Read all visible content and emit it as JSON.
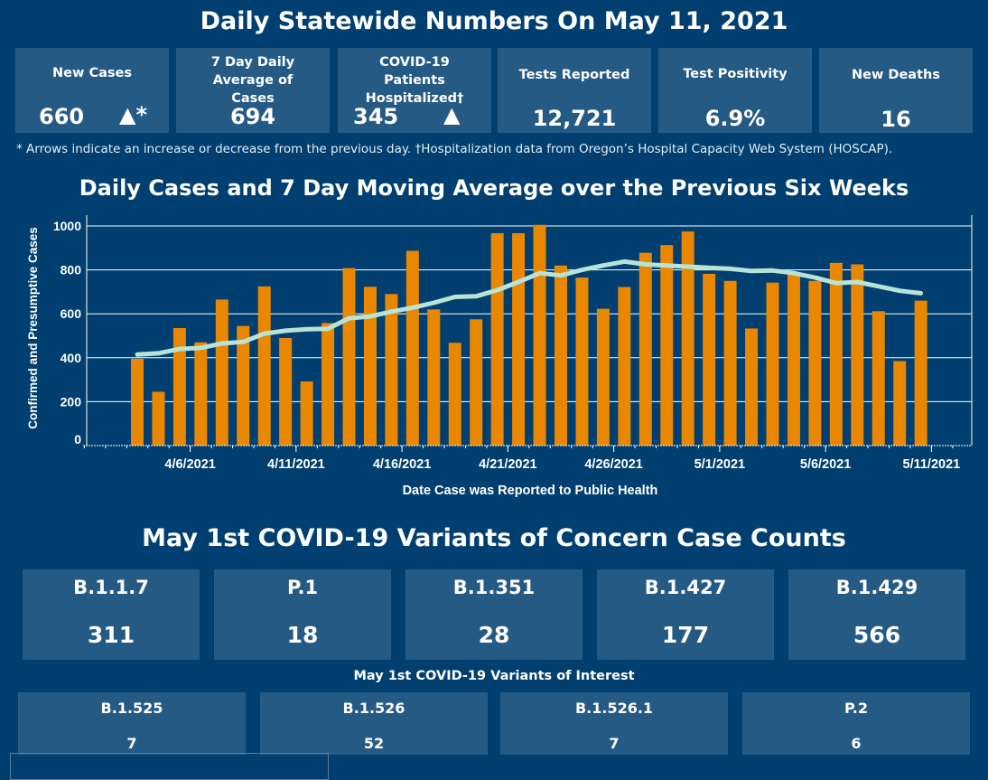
{
  "header": {
    "title": "Daily Statewide Numbers On May 11, 2021"
  },
  "stats": [
    {
      "label": "New Cases",
      "value": "660",
      "arrow": "▲*",
      "arrow_icon": "up-triangle-icon"
    },
    {
      "label": "7 Day Daily Average of Cases",
      "value": "694"
    },
    {
      "label": "COVID-19 Patients Hospitalized†",
      "value": "345",
      "arrow": "▲",
      "arrow_icon": "up-triangle-icon"
    },
    {
      "label": "Tests Reported",
      "value": "12,721"
    },
    {
      "label": "Test Positivity",
      "value": "6.9%"
    },
    {
      "label": "New Deaths",
      "value": "16"
    }
  ],
  "footnote": "* Arrows indicate an increase or decrease from the previous day. †Hospitalization data from Oregon’s Hospital Capacity Web System (HOSCAP).",
  "colors": {
    "background": "#003f6f",
    "card": "#255a84",
    "bar": "#e98700",
    "line": "#b8e3d6",
    "grid": "#ffffff"
  },
  "chart_data": {
    "type": "bar",
    "title": "Daily Cases and 7 Day Moving Average over the Previous Six Weeks",
    "xlabel": "Date Case was Reported to Public Health",
    "ylabel": "Confirmed and Presumptive Cases",
    "ylim": [
      0,
      1000
    ],
    "yticks": [
      0,
      200,
      400,
      600,
      800,
      1000
    ],
    "xtick_labels": [
      "4/6/2021",
      "4/11/2021",
      "4/16/2021",
      "4/21/2021",
      "4/26/2021",
      "5/1/2021",
      "5/6/2021",
      "5/11/2021"
    ],
    "grid": true,
    "categories": [
      "4/3",
      "4/4",
      "4/5",
      "4/6",
      "4/7",
      "4/8",
      "4/9",
      "4/10",
      "4/11",
      "4/12",
      "4/13",
      "4/14",
      "4/15",
      "4/16",
      "4/17",
      "4/18",
      "4/19",
      "4/20",
      "4/21",
      "4/22",
      "4/23",
      "4/24",
      "4/25",
      "4/26",
      "4/27",
      "4/28",
      "4/29",
      "4/30",
      "5/1",
      "5/2",
      "5/3",
      "5/4",
      "5/5",
      "5/6",
      "5/7",
      "5/8",
      "5/9",
      "5/10"
    ],
    "series": [
      {
        "name": "Daily Cases",
        "type": "bar",
        "values": [
          395,
          245,
          535,
          470,
          665,
          545,
          725,
          490,
          292,
          558,
          808,
          723,
          690,
          887,
          620,
          468,
          575,
          967,
          967,
          1005,
          820,
          765,
          623,
          722,
          878,
          913,
          975,
          782,
          750,
          533,
          742,
          790,
          750,
          832,
          825,
          612,
          385,
          660
        ]
      },
      {
        "name": "7 Day Moving Average",
        "type": "line",
        "values": [
          415,
          420,
          440,
          445,
          465,
          472,
          510,
          523,
          530,
          532,
          580,
          588,
          610,
          628,
          650,
          677,
          680,
          708,
          745,
          785,
          775,
          800,
          820,
          838,
          825,
          820,
          815,
          810,
          805,
          795,
          797,
          785,
          765,
          740,
          745,
          725,
          705,
          694
        ]
      }
    ]
  },
  "variants_concern": {
    "title": "May 1st  COVID-19 Variants of Concern Case Counts",
    "items": [
      {
        "name": "B.1.1.7",
        "count": "311"
      },
      {
        "name": "P.1",
        "count": "18"
      },
      {
        "name": "B.1.351",
        "count": "28"
      },
      {
        "name": "B.1.427",
        "count": "177"
      },
      {
        "name": "B.1.429",
        "count": "566"
      }
    ]
  },
  "variants_interest": {
    "title": "May 1st COVID-19 Variants of Interest",
    "items": [
      {
        "name": "B.1.525",
        "count": "7"
      },
      {
        "name": "B.1.526",
        "count": "52"
      },
      {
        "name": "B.1.526.1",
        "count": "7"
      },
      {
        "name": "P.2",
        "count": "6"
      }
    ]
  }
}
